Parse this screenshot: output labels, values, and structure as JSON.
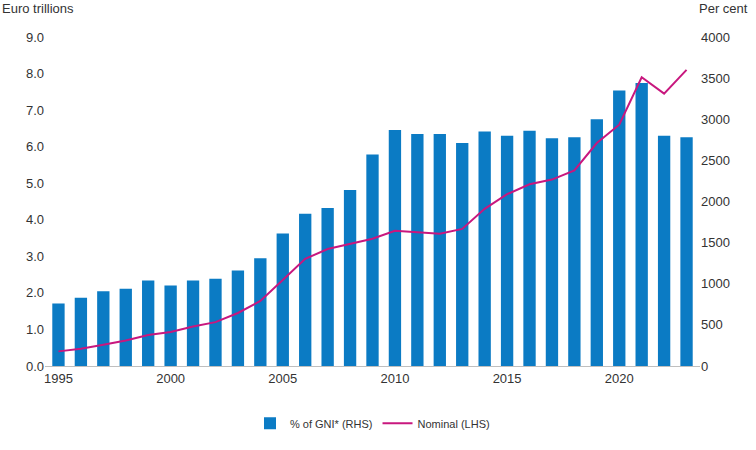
{
  "chart_data": {
    "type": "bar",
    "x": [
      1995,
      1996,
      1997,
      1998,
      1999,
      2000,
      2001,
      2002,
      2003,
      2004,
      2005,
      2006,
      2007,
      2008,
      2009,
      2010,
      2011,
      2012,
      2013,
      2014,
      2015,
      2016,
      2017,
      2018,
      2019,
      2020,
      2021,
      2022,
      2023
    ],
    "series": [
      {
        "name": "% of GNI* (RHS)",
        "type": "bar",
        "color": "#0b7bc4",
        "axis": "y2",
        "values": [
          760,
          830,
          910,
          940,
          1040,
          980,
          1040,
          1060,
          1160,
          1310,
          1610,
          1850,
          1920,
          2140,
          2570,
          2870,
          2820,
          2820,
          2710,
          2850,
          2800,
          2860,
          2770,
          2780,
          3000,
          3350,
          3440,
          2800,
          2780
        ]
      },
      {
        "name": "Nominal (LHS)",
        "type": "line",
        "color": "#c8177e",
        "values": [
          0.4,
          0.47,
          0.58,
          0.7,
          0.85,
          0.93,
          1.08,
          1.2,
          1.45,
          1.78,
          2.35,
          2.93,
          3.2,
          3.35,
          3.48,
          3.7,
          3.65,
          3.62,
          3.75,
          4.3,
          4.7,
          4.97,
          5.1,
          5.35,
          6.1,
          6.6,
          7.9,
          7.45,
          8.1
        ]
      }
    ],
    "xlim": [
      1994.4,
      2023.6
    ],
    "xticks": [
      1995,
      2000,
      2005,
      2010,
      2015,
      2020
    ],
    "ylim": [
      0,
      9
    ],
    "yticks": [
      {
        "value": 0,
        "label": "0.0"
      },
      {
        "value": 1,
        "label": "1.0"
      },
      {
        "value": 2,
        "label": "2.0"
      },
      {
        "value": 3,
        "label": "3.0"
      },
      {
        "value": 4,
        "label": "4.0"
      },
      {
        "value": 5,
        "label": "5.0"
      },
      {
        "value": 6,
        "label": "6.0"
      },
      {
        "value": 7,
        "label": "7.0"
      },
      {
        "value": 8,
        "label": "8.0"
      },
      {
        "value": 9,
        "label": "9.0"
      }
    ],
    "y2lim": [
      0,
      4000
    ],
    "y2ticks": [
      0,
      500,
      1000,
      1500,
      2000,
      2500,
      3000,
      3500,
      4000
    ],
    "ylabel": "Euro trillions",
    "y2label": "Per cent",
    "legend": "bottom",
    "grid": false
  }
}
